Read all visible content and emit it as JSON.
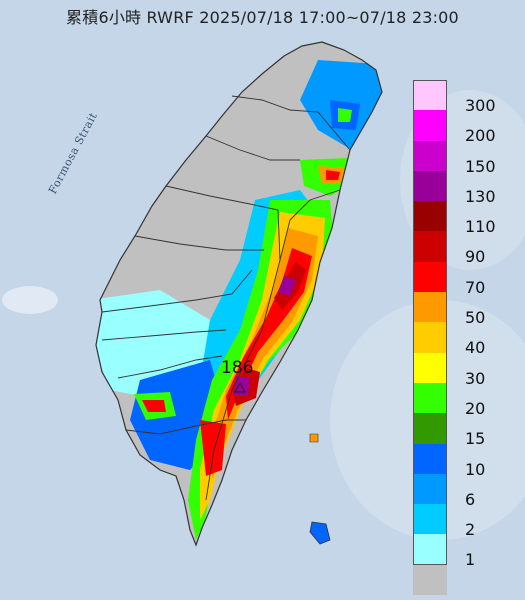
{
  "title": "累積6小時 RWRF 2025/07/18 17:00~07/18 23:00",
  "strait_label": "Formosa Strait",
  "peak": {
    "value": "186",
    "marker": "triangle-marker"
  },
  "legend": [
    {
      "label": "300",
      "color": "#ffc6ff"
    },
    {
      "label": "200",
      "color": "#ff00ff"
    },
    {
      "label": "150",
      "color": "#cc00cc"
    },
    {
      "label": "130",
      "color": "#990099"
    },
    {
      "label": "110",
      "color": "#990000"
    },
    {
      "label": "90",
      "color": "#cc0000"
    },
    {
      "label": "70",
      "color": "#ff0000"
    },
    {
      "label": "50",
      "color": "#ff9900"
    },
    {
      "label": "40",
      "color": "#ffcc00"
    },
    {
      "label": "30",
      "color": "#ffff00"
    },
    {
      "label": "20",
      "color": "#33ff00"
    },
    {
      "label": "15",
      "color": "#339900"
    },
    {
      "label": "10",
      "color": "#0066ff"
    },
    {
      "label": "6",
      "color": "#0099ff"
    },
    {
      "label": "2",
      "color": "#00ccff"
    },
    {
      "label": "1",
      "color": "#99ffff"
    },
    {
      "label": "",
      "color": "#c0c0c0"
    }
  ]
}
